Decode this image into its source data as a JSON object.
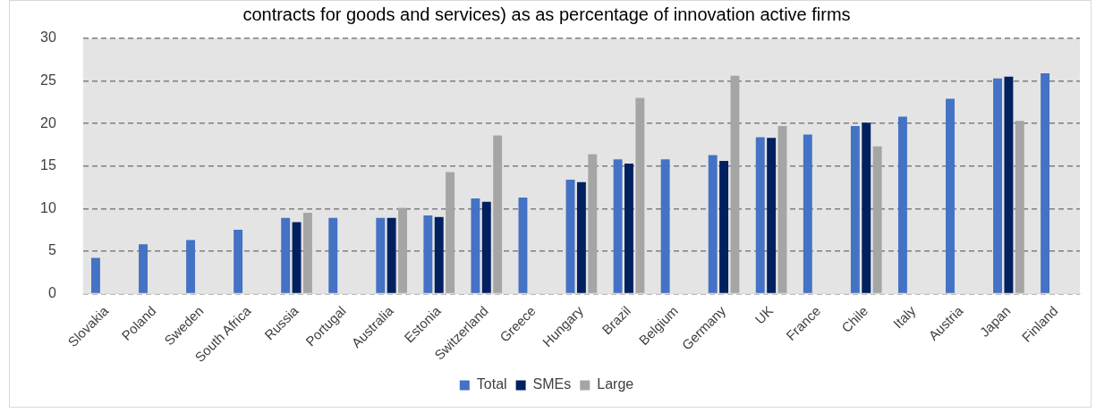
{
  "chart_data": {
    "type": "bar",
    "title": "contracts for goods and services) as as percentage of innovation active firms",
    "categories": [
      "Slovakia",
      "Poland",
      "Sweden",
      "South Africa",
      "Russia",
      "Portugal",
      "Australia",
      "Estonia",
      "Switzerland",
      "Greece",
      "Hungary",
      "Brazil",
      "Belgium",
      "Germany",
      "UK",
      "France",
      "Chile",
      "Italy",
      "Austria",
      "Japan",
      "Finland"
    ],
    "series": [
      {
        "name": "Total",
        "color": "#4472c4",
        "values": [
          4.2,
          5.8,
          6.3,
          7.5,
          8.9,
          8.9,
          8.9,
          9.2,
          11.2,
          11.3,
          13.4,
          15.8,
          15.8,
          16.3,
          18.4,
          18.7,
          19.7,
          20.8,
          22.9,
          25.3,
          25.9
        ]
      },
      {
        "name": "SMEs",
        "color": "#002060",
        "values": [
          null,
          null,
          null,
          null,
          8.4,
          null,
          8.9,
          9.0,
          10.8,
          null,
          13.1,
          15.3,
          null,
          15.6,
          18.3,
          null,
          20.1,
          null,
          null,
          25.5,
          null
        ]
      },
      {
        "name": "Large",
        "color": "#a5a5a5",
        "values": [
          null,
          null,
          null,
          null,
          9.5,
          null,
          10.1,
          14.3,
          18.6,
          null,
          16.4,
          23.0,
          null,
          25.6,
          19.7,
          null,
          17.3,
          null,
          null,
          20.3,
          null
        ]
      }
    ],
    "ylim": [
      0,
      30
    ],
    "yticks": [
      0,
      5,
      10,
      15,
      20,
      25,
      30
    ],
    "grid": "y",
    "legend": "bottom"
  }
}
